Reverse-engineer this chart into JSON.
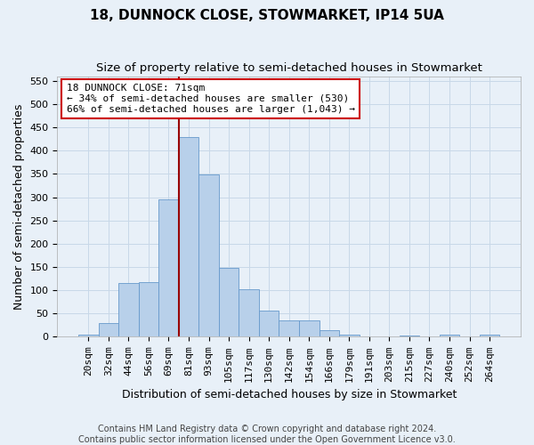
{
  "title": "18, DUNNOCK CLOSE, STOWMARKET, IP14 5UA",
  "subtitle": "Size of property relative to semi-detached houses in Stowmarket",
  "xlabel": "Distribution of semi-detached houses by size in Stowmarket",
  "ylabel": "Number of semi-detached properties",
  "footer_line1": "Contains HM Land Registry data © Crown copyright and database right 2024.",
  "footer_line2": "Contains public sector information licensed under the Open Government Licence v3.0.",
  "bar_labels": [
    "20sqm",
    "32sqm",
    "44sqm",
    "56sqm",
    "69sqm",
    "81sqm",
    "93sqm",
    "105sqm",
    "117sqm",
    "130sqm",
    "142sqm",
    "154sqm",
    "166sqm",
    "179sqm",
    "191sqm",
    "203sqm",
    "215sqm",
    "227sqm",
    "240sqm",
    "252sqm",
    "264sqm"
  ],
  "bar_values": [
    4,
    30,
    115,
    118,
    295,
    430,
    348,
    148,
    103,
    56,
    35,
    35,
    15,
    5,
    0,
    0,
    2,
    0,
    5,
    0,
    4
  ],
  "bar_color": "#b8d0ea",
  "bar_edge_color": "#6699cc",
  "vline_color": "#990000",
  "vline_index": 5,
  "annotation_text": "18 DUNNOCK CLOSE: 71sqm\n← 34% of semi-detached houses are smaller (530)\n66% of semi-detached houses are larger (1,043) →",
  "annotation_box_color": "#ffffff",
  "annotation_box_edge_color": "#cc0000",
  "ylim": [
    0,
    560
  ],
  "yticks": [
    0,
    50,
    100,
    150,
    200,
    250,
    300,
    350,
    400,
    450,
    500,
    550
  ],
  "grid_color": "#c8d8e8",
  "bg_color": "#e8f0f8",
  "title_fontsize": 11,
  "subtitle_fontsize": 9.5,
  "axis_label_fontsize": 9,
  "tick_fontsize": 8,
  "footer_fontsize": 7,
  "annotation_fontsize": 8
}
